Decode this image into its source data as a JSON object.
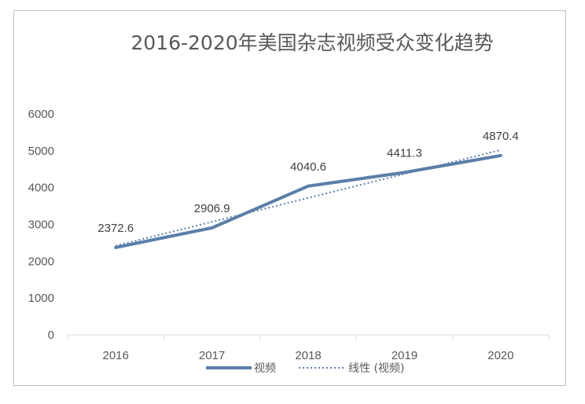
{
  "chart_data": {
    "type": "line",
    "title": "2016-2020年美国杂志视频受众变化趋势",
    "categories": [
      "2016",
      "2017",
      "2018",
      "2019",
      "2020"
    ],
    "series": [
      {
        "name": "视频",
        "values": [
          2372.6,
          2906.9,
          4040.6,
          4411.3,
          4870.4
        ],
        "color": "#5b7fa8",
        "style": "solid"
      }
    ],
    "trendline": {
      "name": "线性 (视频)",
      "type": "linear",
      "of_series": "视频",
      "color": "#5b7fa8",
      "style": "dotted"
    },
    "data_labels": [
      "2372.6",
      "2906.9",
      "4040.6",
      "4411.3",
      "4870.4"
    ],
    "yticks": [
      "0",
      "1000",
      "2000",
      "3000",
      "4000",
      "5000",
      "6000"
    ],
    "ylim": [
      0,
      6000
    ],
    "grid": false,
    "legend_position": "bottom"
  }
}
